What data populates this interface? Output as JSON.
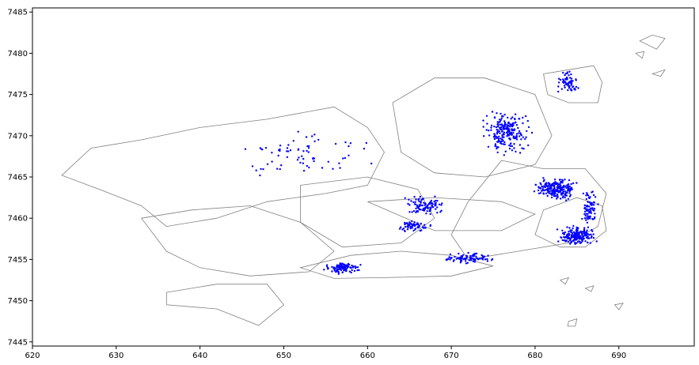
{
  "chart_data": {
    "type": "scatter",
    "title": "",
    "xlabel": "",
    "ylabel": "",
    "xlim": [
      620,
      699
    ],
    "ylim": [
      7444.5,
      7485.5
    ],
    "x_ticks": [
      620,
      630,
      640,
      650,
      660,
      670,
      680,
      690
    ],
    "y_ticks": [
      7445,
      7450,
      7455,
      7460,
      7465,
      7470,
      7475,
      7480,
      7485
    ],
    "grid": false,
    "legend": "none",
    "colors": {
      "points": "#0000ff",
      "polygons": "#808080",
      "axes": "#000000"
    },
    "polygons": [
      [
        [
          623.5,
          7465.2
        ],
        [
          627.0,
          7468.5
        ],
        [
          633.0,
          7469.5
        ],
        [
          640.0,
          7471.0
        ],
        [
          648.0,
          7472.0
        ],
        [
          656.0,
          7473.5
        ],
        [
          660.0,
          7471.0
        ],
        [
          662.0,
          7468.0
        ],
        [
          660.0,
          7464.0
        ],
        [
          655.0,
          7463.0
        ],
        [
          648.0,
          7462.0
        ],
        [
          642.0,
          7460.0
        ],
        [
          636.0,
          7459.0
        ],
        [
          633.0,
          7461.5
        ],
        [
          628.0,
          7463.5
        ]
      ],
      [
        [
          633.0,
          7460.0
        ],
        [
          639.0,
          7461.0
        ],
        [
          646.0,
          7461.5
        ],
        [
          652.0,
          7459.5
        ],
        [
          656.0,
          7456.0
        ],
        [
          653.0,
          7453.5
        ],
        [
          646.0,
          7453.0
        ],
        [
          640.0,
          7454.0
        ],
        [
          636.0,
          7456.0
        ]
      ],
      [
        [
          652.0,
          7464.0
        ],
        [
          660.0,
          7465.0
        ],
        [
          666.0,
          7463.5
        ],
        [
          668.0,
          7460.0
        ],
        [
          664.0,
          7457.0
        ],
        [
          657.0,
          7456.5
        ],
        [
          652.0,
          7459.5
        ]
      ],
      [
        [
          663.0,
          7474.0
        ],
        [
          668.0,
          7477.0
        ],
        [
          674.0,
          7477.0
        ],
        [
          680.0,
          7475.0
        ],
        [
          682.0,
          7470.0
        ],
        [
          680.0,
          7466.5
        ],
        [
          674.0,
          7465.0
        ],
        [
          668.0,
          7465.5
        ],
        [
          664.0,
          7468.0
        ]
      ],
      [
        [
          676.0,
          7467.0
        ],
        [
          681.0,
          7466.0
        ],
        [
          686.0,
          7466.0
        ],
        [
          688.5,
          7463.0
        ],
        [
          687.5,
          7459.0
        ],
        [
          684.0,
          7457.0
        ],
        [
          678.0,
          7456.0
        ],
        [
          672.0,
          7455.0
        ],
        [
          670.0,
          7458.0
        ],
        [
          672.0,
          7462.0
        ]
      ],
      [
        [
          652.0,
          7454.0
        ],
        [
          658.0,
          7455.5
        ],
        [
          664.0,
          7456.0
        ],
        [
          670.0,
          7455.5
        ],
        [
          675.0,
          7454.2
        ],
        [
          670.0,
          7453.0
        ],
        [
          662.0,
          7452.8
        ],
        [
          656.0,
          7452.7
        ]
      ],
      [
        [
          636.0,
          7451.0
        ],
        [
          642.0,
          7452.0
        ],
        [
          648.0,
          7452.0
        ],
        [
          650.0,
          7449.5
        ],
        [
          647.0,
          7447.0
        ],
        [
          642.0,
          7449.0
        ],
        [
          636.0,
          7449.5
        ]
      ],
      [
        [
          660.0,
          7462.0
        ],
        [
          668.0,
          7462.5
        ],
        [
          676.0,
          7462.0
        ],
        [
          680.0,
          7460.5
        ],
        [
          676.0,
          7458.5
        ],
        [
          668.0,
          7458.5
        ]
      ],
      [
        [
          681.0,
          7461.0
        ],
        [
          685.0,
          7462.5
        ],
        [
          688.0,
          7461.5
        ],
        [
          688.5,
          7458.5
        ],
        [
          686.0,
          7456.5
        ],
        [
          683.0,
          7456.5
        ],
        [
          680.0,
          7458.0
        ]
      ],
      [
        [
          681.0,
          7477.5
        ],
        [
          684.0,
          7478.0
        ],
        [
          687.0,
          7478.5
        ],
        [
          688.0,
          7476.5
        ],
        [
          687.5,
          7474.0
        ],
        [
          684.0,
          7474.0
        ],
        [
          681.5,
          7475.0
        ]
      ],
      [
        [
          692.5,
          7481.5
        ],
        [
          694.0,
          7482.2
        ],
        [
          695.5,
          7481.8
        ],
        [
          694.5,
          7480.5
        ]
      ],
      [
        [
          692.0,
          7480.0
        ],
        [
          693.0,
          7480.2
        ],
        [
          692.8,
          7479.4
        ]
      ],
      [
        [
          694.0,
          7477.5
        ],
        [
          695.5,
          7478.0
        ],
        [
          695.0,
          7477.2
        ]
      ],
      [
        [
          686.0,
          7451.5
        ],
        [
          687.0,
          7451.8
        ],
        [
          686.7,
          7451.1
        ]
      ],
      [
        [
          689.5,
          7449.5
        ],
        [
          690.5,
          7449.7
        ],
        [
          690.0,
          7448.9
        ]
      ],
      [
        [
          683.0,
          7452.5
        ],
        [
          684.0,
          7452.8
        ],
        [
          683.6,
          7452.0
        ]
      ],
      [
        [
          684.0,
          7447.5
        ],
        [
          685.0,
          7447.8
        ],
        [
          684.8,
          7446.9
        ],
        [
          683.9,
          7446.9
        ]
      ]
    ],
    "series": [
      {
        "name": "",
        "clusters": [
          {
            "center": [
              676.5,
              7470.5
            ],
            "spread": [
              3.5,
              3.0
            ],
            "count": 220
          },
          {
            "center": [
              682.5,
              7463.5
            ],
            "spread": [
              3.0,
              1.6
            ],
            "count": 220
          },
          {
            "center": [
              685.0,
              7457.8
            ],
            "spread": [
              2.8,
              1.5
            ],
            "count": 180
          },
          {
            "center": [
              672.0,
              7455.2
            ],
            "spread": [
              3.5,
              0.8
            ],
            "count": 90
          },
          {
            "center": [
              657.0,
              7454.0
            ],
            "spread": [
              2.6,
              0.9
            ],
            "count": 110
          },
          {
            "center": [
              667.0,
              7461.5
            ],
            "spread": [
              3.0,
              1.5
            ],
            "count": 100
          },
          {
            "center": [
              665.5,
              7459.0
            ],
            "spread": [
              2.5,
              0.8
            ],
            "count": 60
          },
          {
            "center": [
              684.0,
              7476.5
            ],
            "spread": [
              1.6,
              1.6
            ],
            "count": 70
          },
          {
            "center": [
              652.0,
              7468.0
            ],
            "spread": [
              10.0,
              3.5
            ],
            "count": 70
          },
          {
            "center": [
              686.5,
              7461.5
            ],
            "spread": [
              1.2,
              3.0
            ],
            "count": 80
          }
        ]
      }
    ]
  }
}
